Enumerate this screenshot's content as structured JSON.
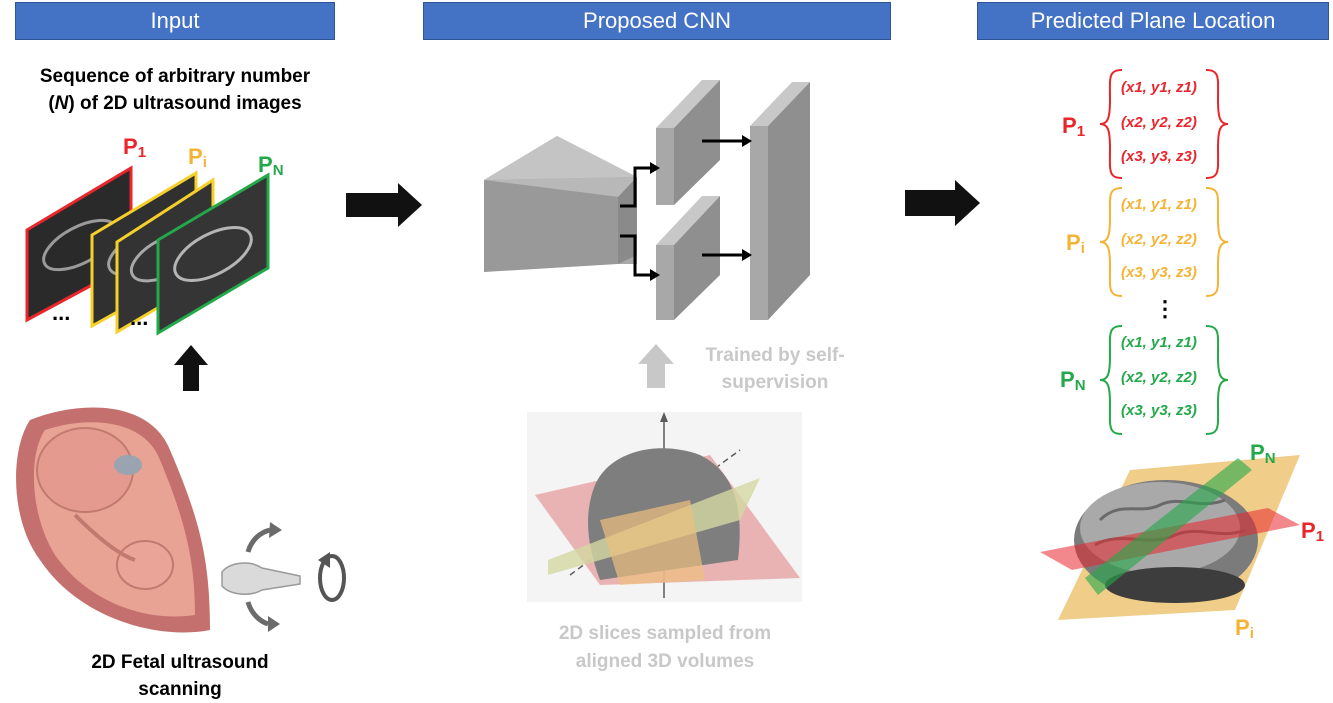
{
  "headers": {
    "input": "Input",
    "cnn": "Proposed CNN",
    "output": "Predicted Plane Location"
  },
  "input": {
    "sequence_line1": "Sequence of arbitrary number",
    "sequence_line2_pre": "(",
    "sequence_line2_n": "N",
    "sequence_line2_post": ") of  2D ultrasound images",
    "frame_labels": {
      "p1": "P",
      "p1_sub": "1",
      "pi": "P",
      "pi_sub": "i",
      "pn": "P",
      "pn_sub": "N"
    },
    "ellipsis": "...",
    "scanning_line1": "2D Fetal ultrasound",
    "scanning_line2": "scanning"
  },
  "cnn": {
    "trained_line1": "Trained by self-",
    "trained_line2": "supervision",
    "slices_line1": "2D slices sampled from",
    "slices_line2": "aligned 3D volumes"
  },
  "output": {
    "groups": [
      {
        "label": "P",
        "sub": "1",
        "color": "#e8262b",
        "coords": [
          "(x1, y1, z1)",
          "(x2, y2, z2)",
          "(x3, y3, z3)"
        ]
      },
      {
        "label": "P",
        "sub": "i",
        "color": "#f5b335",
        "coords": [
          "(x1, y1, z1)",
          "(x2, y2, z2)",
          "(x3, y3, z3)"
        ]
      },
      {
        "label": "P",
        "sub": "N",
        "color": "#23a84a",
        "coords": [
          "(x1, y1, z1)",
          "(x2, y2, z2)",
          "(x3, y3, z3)"
        ]
      }
    ],
    "vdots": "⋮",
    "brain_labels": {
      "pn": "P",
      "pn_sub": "N",
      "p1": "P",
      "p1_sub": "1",
      "pi": "P",
      "pi_sub": "i"
    }
  },
  "colors": {
    "header_bg": "#4472c4",
    "red": "#e8262b",
    "yellow": "#f5b335",
    "green": "#23a84a",
    "gray_text": "#c8c8c8"
  }
}
